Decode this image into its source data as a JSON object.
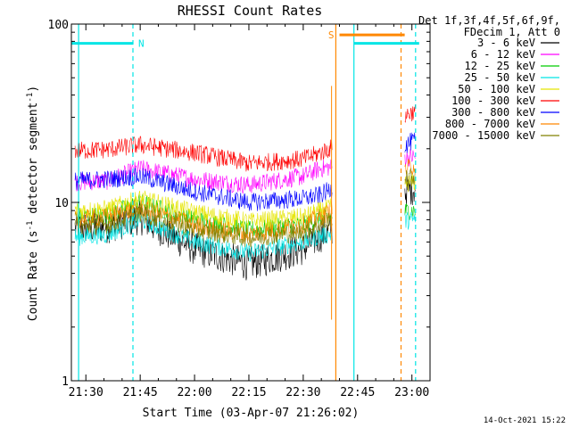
{
  "chart_data": {
    "type": "line",
    "title": "RHESSI Count Rates",
    "xlabel": "Start Time (03-Apr-07 21:26:02)",
    "ylabel_parts": [
      "Count Rate (s",
      "-1",
      " detector segment",
      "-1",
      ")"
    ],
    "y_scale": "log",
    "ylim": [
      1,
      100
    ],
    "xlim": [
      "21:26",
      "23:05"
    ],
    "x_ticks": [
      "21:30",
      "21:45",
      "22:00",
      "22:15",
      "22:30",
      "22:45",
      "23:00"
    ],
    "y_ticks": [
      "1",
      "10",
      "100"
    ],
    "legend_placement": "right",
    "legend_header": [
      "Det 1f,3f,4f,5f,6f,9f,",
      "FDecim 1, Att 0"
    ],
    "series": [
      {
        "name": "3 - 6 keV",
        "color": "#000000",
        "values": [
          [
            21.45,
            7.2
          ],
          [
            21.6,
            7.3
          ],
          [
            21.75,
            8.2
          ],
          [
            22.0,
            5.5
          ],
          [
            22.25,
            4.5
          ],
          [
            22.5,
            5.5
          ],
          [
            22.58,
            6.5
          ],
          [
            23.0,
            12
          ]
        ]
      },
      {
        "name": "6 - 12 keV",
        "color": "#ff00ff",
        "values": [
          [
            21.45,
            13.0
          ],
          [
            21.6,
            13.2
          ],
          [
            21.75,
            15.5
          ],
          [
            22.0,
            13.5
          ],
          [
            22.25,
            12.5
          ],
          [
            22.5,
            14.0
          ],
          [
            22.58,
            15.5
          ],
          [
            23.0,
            18
          ]
        ]
      },
      {
        "name": "12 - 25 keV",
        "color": "#00cc00",
        "values": [
          [
            21.45,
            8.3
          ],
          [
            21.6,
            8.5
          ],
          [
            21.75,
            10.0
          ],
          [
            22.0,
            8.0
          ],
          [
            22.25,
            7.0
          ],
          [
            22.5,
            7.5
          ],
          [
            22.58,
            8.2
          ],
          [
            23.0,
            9
          ]
        ]
      },
      {
        "name": "25 - 50 keV",
        "color": "#00e5e5",
        "values": [
          [
            21.45,
            6.4
          ],
          [
            21.6,
            6.6
          ],
          [
            21.75,
            8.0
          ],
          [
            22.0,
            6.0
          ],
          [
            22.25,
            5.2
          ],
          [
            22.5,
            6.0
          ],
          [
            22.58,
            6.5
          ],
          [
            23.0,
            8
          ]
        ]
      },
      {
        "name": "50 - 100 keV",
        "color": "#e5e500",
        "values": [
          [
            21.45,
            9.0
          ],
          [
            21.6,
            9.2
          ],
          [
            21.75,
            10.5
          ],
          [
            22.0,
            8.8
          ],
          [
            22.25,
            7.8
          ],
          [
            22.5,
            8.3
          ],
          [
            22.58,
            9.0
          ],
          [
            23.0,
            13
          ]
        ]
      },
      {
        "name": "100 - 300 keV",
        "color": "#ff0000",
        "values": [
          [
            21.45,
            19.5
          ],
          [
            21.6,
            19.8
          ],
          [
            21.75,
            21.0
          ],
          [
            22.0,
            19.0
          ],
          [
            22.25,
            16.5
          ],
          [
            22.5,
            17.5
          ],
          [
            22.58,
            19.0
          ],
          [
            23.0,
            32
          ]
        ]
      },
      {
        "name": "300 - 800 keV",
        "color": "#0000ff",
        "values": [
          [
            21.45,
            13.2
          ],
          [
            21.6,
            13.5
          ],
          [
            21.75,
            14.0
          ],
          [
            22.0,
            11.5
          ],
          [
            22.25,
            10.0
          ],
          [
            22.5,
            10.5
          ],
          [
            22.58,
            11.0
          ],
          [
            23.0,
            22
          ]
        ]
      },
      {
        "name": "800 - 7000 keV",
        "color": "#ff8800",
        "values": [
          [
            21.45,
            8.0
          ],
          [
            21.6,
            8.3
          ],
          [
            21.75,
            9.3
          ],
          [
            22.0,
            7.5
          ],
          [
            22.25,
            6.6
          ],
          [
            22.5,
            7.5
          ],
          [
            22.58,
            8.3
          ],
          [
            23.0,
            16
          ]
        ]
      },
      {
        "name": "7000 - 15000 keV",
        "color": "#808000",
        "values": [
          [
            21.45,
            7.3
          ],
          [
            21.6,
            7.5
          ],
          [
            21.75,
            8.7
          ],
          [
            22.0,
            7.0
          ],
          [
            22.25,
            6.3
          ],
          [
            22.5,
            6.8
          ],
          [
            22.58,
            7.5
          ],
          [
            23.0,
            14
          ]
        ]
      }
    ],
    "annotations": [
      {
        "label": "N",
        "color": "#00e5e5",
        "x_start": "21:26",
        "x_end": "21:43",
        "y": 78
      },
      {
        "label": "S",
        "color": "#ff8800",
        "x_start": "22:40",
        "x_end": "22:58",
        "y": 87
      },
      {
        "label": "",
        "color": "#00e5e5",
        "x_start": "22:44",
        "x_end": "23:02",
        "y": 78
      }
    ]
  },
  "footer": {
    "timestamp": "14-Oct-2021 15:22"
  }
}
